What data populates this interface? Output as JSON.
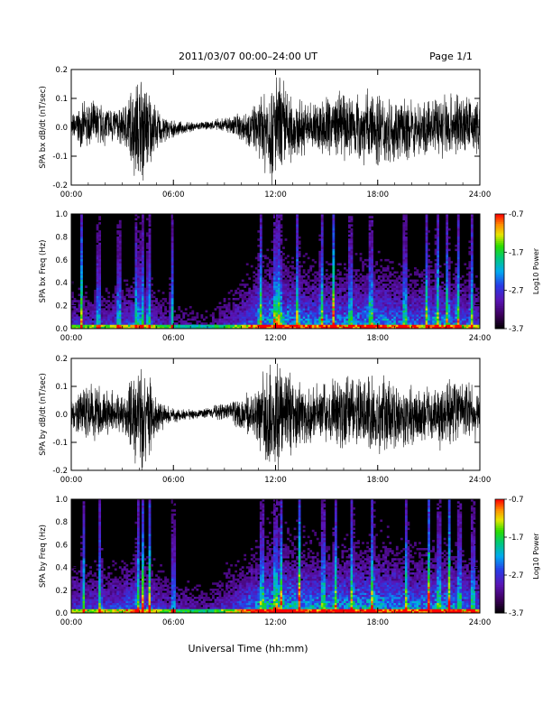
{
  "header": {
    "title": "2011/03/07  00:00–24:00 UT",
    "page": "Page 1/1"
  },
  "xlabel": "Universal Time (hh:mm)",
  "chart_data": [
    {
      "type": "line",
      "ylabel": "SPA bx dB/dt (nT/sec)",
      "xlim": [
        0,
        24
      ],
      "ylim": [
        -0.2,
        0.2
      ],
      "x_ticks": [
        "00:00",
        "06:00",
        "12:00",
        "18:00",
        "24:00"
      ],
      "y_ticks": [
        "-0.2",
        "-0.1",
        "0.0",
        "0.1",
        "0.2"
      ],
      "y_tick_values": [
        -0.2,
        -0.1,
        0.0,
        0.1,
        0.2
      ],
      "envelope": {
        "hours": [
          0,
          1,
          2,
          3,
          3.8,
          4.2,
          4.6,
          5,
          6,
          7,
          8,
          9,
          10,
          11,
          11.5,
          12,
          12.5,
          13,
          14,
          15,
          16,
          17,
          18,
          19,
          20,
          21,
          22,
          23,
          24
        ],
        "amplitude": [
          0.05,
          0.1,
          0.08,
          0.07,
          0.2,
          0.22,
          0.15,
          0.08,
          0.03,
          0.02,
          0.015,
          0.03,
          0.06,
          0.1,
          0.2,
          0.22,
          0.2,
          0.12,
          0.1,
          0.12,
          0.13,
          0.14,
          0.15,
          0.12,
          0.11,
          0.1,
          0.14,
          0.12,
          0.1
        ]
      }
    },
    {
      "type": "heatmap",
      "ylabel": "SPA bx Freq (Hz)",
      "xlim": [
        0,
        24
      ],
      "ylim": [
        0,
        1.0
      ],
      "x_ticks": [
        "00:00",
        "06:00",
        "12:00",
        "18:00",
        "24:00"
      ],
      "y_ticks": [
        "0.0",
        "0.2",
        "0.4",
        "0.6",
        "0.8",
        "1.0"
      ],
      "y_tick_values": [
        0.0,
        0.2,
        0.4,
        0.6,
        0.8,
        1.0
      ],
      "colorbar": {
        "label": "Log10 Power",
        "range": [
          -3.7,
          -0.7
        ],
        "ticks": [
          "-0.7",
          "-1.7",
          "-2.7",
          "-3.7"
        ],
        "tick_values": [
          -0.7,
          -1.7,
          -2.7,
          -3.7
        ]
      },
      "activity": {
        "hours": [
          0,
          2,
          4,
          6,
          8,
          10,
          11,
          12,
          13,
          14,
          16,
          18,
          20,
          22,
          24
        ],
        "level": [
          0.35,
          0.35,
          0.45,
          0.25,
          0.2,
          0.4,
          0.55,
          0.7,
          0.6,
          0.55,
          0.55,
          0.6,
          0.5,
          0.55,
          0.4
        ]
      },
      "bursts_hours": [
        0.6,
        1.6,
        2.8,
        3.85,
        4.15,
        4.55,
        5.9,
        11.1,
        12.0,
        12.25,
        13.3,
        14.7,
        15.4,
        16.4,
        17.6,
        19.6,
        20.9,
        21.5,
        22.1,
        22.7,
        23.5
      ]
    },
    {
      "type": "line",
      "ylabel": "SPA by dB/dt (nT/sec)",
      "xlim": [
        0,
        24
      ],
      "ylim": [
        -0.2,
        0.2
      ],
      "x_ticks": [
        "00:00",
        "06:00",
        "12:00",
        "18:00",
        "24:00"
      ],
      "y_ticks": [
        "-0.2",
        "-0.1",
        "0.0",
        "0.1",
        "0.2"
      ],
      "y_tick_values": [
        -0.2,
        -0.1,
        0.0,
        0.1,
        0.2
      ],
      "envelope": {
        "hours": [
          0,
          1,
          2,
          3,
          3.8,
          4.2,
          4.6,
          5,
          6,
          7,
          8,
          9,
          10,
          11,
          11.5,
          12,
          12.5,
          13,
          14,
          15,
          16,
          17,
          18,
          19,
          20,
          21,
          22,
          23,
          24
        ],
        "amplitude": [
          0.06,
          0.12,
          0.09,
          0.08,
          0.2,
          0.22,
          0.16,
          0.07,
          0.03,
          0.02,
          0.02,
          0.04,
          0.07,
          0.12,
          0.2,
          0.22,
          0.21,
          0.15,
          0.12,
          0.13,
          0.14,
          0.15,
          0.16,
          0.13,
          0.12,
          0.11,
          0.15,
          0.12,
          0.1
        ]
      }
    },
    {
      "type": "heatmap",
      "ylabel": "SPA by Freq (Hz)",
      "xlim": [
        0,
        24
      ],
      "ylim": [
        0,
        1.0
      ],
      "x_ticks": [
        "00:00",
        "06:00",
        "12:00",
        "18:00",
        "24:00"
      ],
      "y_ticks": [
        "0.0",
        "0.2",
        "0.4",
        "0.6",
        "0.8",
        "1.0"
      ],
      "y_tick_values": [
        0.0,
        0.2,
        0.4,
        0.6,
        0.8,
        1.0
      ],
      "colorbar": {
        "label": "Log10 Power",
        "range": [
          -3.7,
          -0.7
        ],
        "ticks": [
          "-0.7",
          "-1.7",
          "-2.7",
          "-3.7"
        ],
        "tick_values": [
          -0.7,
          -1.7,
          -2.7,
          -3.7
        ]
      },
      "activity": {
        "hours": [
          0,
          2,
          4,
          6,
          8,
          10,
          11,
          12,
          13,
          14,
          16,
          18,
          20,
          22,
          24
        ],
        "level": [
          0.4,
          0.4,
          0.5,
          0.3,
          0.25,
          0.45,
          0.6,
          0.75,
          0.65,
          0.6,
          0.6,
          0.65,
          0.55,
          0.6,
          0.45
        ]
      },
      "bursts_hours": [
        0.7,
        1.7,
        3.9,
        4.2,
        4.6,
        6.0,
        11.2,
        12.0,
        12.3,
        13.4,
        14.8,
        15.5,
        16.5,
        17.7,
        19.7,
        21.0,
        21.6,
        22.2,
        22.8,
        23.6
      ]
    }
  ]
}
